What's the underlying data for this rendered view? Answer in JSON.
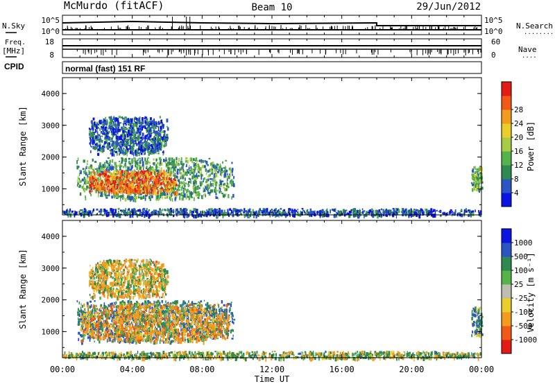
{
  "header": {
    "station": "McMurdo (fitACF)",
    "beam": "Beam 10",
    "date": "29/Jun/2012"
  },
  "panel_sky": {
    "left_label": "N.Sky",
    "right_label": "N.Search",
    "dots": "........",
    "tick_hi": "10^5",
    "tick_lo": "10^0"
  },
  "panel_freq": {
    "left_label_1": "Freq.",
    "left_label_2": "[MHz]",
    "tick_hi": "18",
    "tick_lo": "8",
    "right_label": "Nave",
    "dots": "....",
    "rtick_hi": "60",
    "rtick_lo": "0"
  },
  "cpid": {
    "label": "CPID",
    "mode": "normal (fast) 151 RF"
  },
  "axes": {
    "ylabel": "Slant Range [km]",
    "xlabel": "Time UT",
    "y_ticks": [
      "1000",
      "2000",
      "3000",
      "4000"
    ],
    "x_ticks": [
      "00:00",
      "04:00",
      "08:00",
      "12:00",
      "16:00",
      "20:00",
      "00:00"
    ]
  },
  "colorbar_power": {
    "label": "Power [dB]",
    "colors": [
      "#0b14e0",
      "#2c55c4",
      "#2e8a4e",
      "#56b24a",
      "#a6cc46",
      "#e9cd2a",
      "#f29b1f",
      "#f15a16",
      "#e21b14"
    ],
    "ticks": [
      "4",
      "8",
      "12",
      "16",
      "20",
      "24",
      "28"
    ]
  },
  "colorbar_velocity": {
    "label": "Velocity [m s⁻¹]",
    "colors": [
      "#e21b14",
      "#f15a16",
      "#f29b1f",
      "#e9cd2a",
      "#bdbdb0",
      "#56b24a",
      "#2e8a4e",
      "#2c55c4",
      "#0b14e0"
    ],
    "ticks": [
      "-1000",
      "-500",
      "-100",
      "-25",
      "25",
      "100",
      "500",
      "1000"
    ]
  },
  "chart_data": [
    {
      "type": "heatmap",
      "title": "Power",
      "ylabel": "Slant Range [km]",
      "xlabel": "Time UT",
      "x_range_hours": [
        0,
        24
      ],
      "y_range_km": [
        180,
        4500
      ],
      "colorbar_ticks_db": [
        4,
        8,
        12,
        16,
        20,
        24,
        28
      ],
      "echo_regions": [
        {
          "t_start": 0.8,
          "t_end": 9.8,
          "range_km": [
            700,
            2000
          ],
          "level_db": 10
        },
        {
          "t_start": 1.5,
          "t_end": 6.5,
          "range_km": [
            900,
            1600
          ],
          "level_db": 24
        },
        {
          "t_start": 1.5,
          "t_end": 6.0,
          "range_km": [
            2100,
            3300
          ],
          "level_db": 6
        },
        {
          "t_start": 0.0,
          "t_end": 24.0,
          "range_km": [
            180,
            400
          ],
          "level_db": 5
        },
        {
          "t_start": 23.4,
          "t_end": 24.0,
          "range_km": [
            900,
            1800
          ],
          "level_db": 12
        }
      ]
    },
    {
      "type": "heatmap",
      "title": "Velocity",
      "ylabel": "Slant Range [km]",
      "xlabel": "Time UT",
      "x_range_hours": [
        0,
        24
      ],
      "y_range_km": [
        180,
        4500
      ],
      "colorbar_ticks_ms": [
        -1000,
        -500,
        -100,
        -25,
        25,
        100,
        500,
        1000
      ],
      "echo_regions": [
        {
          "t_start": 0.8,
          "t_end": 9.8,
          "range_km": [
            700,
            2000
          ],
          "velocity_ms": 300
        },
        {
          "t_start": 1.0,
          "t_end": 9.5,
          "range_km": [
            700,
            1900
          ],
          "velocity_ms": -150
        },
        {
          "t_start": 1.5,
          "t_end": 6.0,
          "range_km": [
            2100,
            3300
          ],
          "velocity_ms": -80
        },
        {
          "t_start": 0.0,
          "t_end": 24.0,
          "range_km": [
            180,
            400
          ],
          "velocity_ms": 60
        },
        {
          "t_start": 23.4,
          "t_end": 24.0,
          "range_km": [
            900,
            1800
          ],
          "velocity_ms": 200
        }
      ]
    }
  ]
}
